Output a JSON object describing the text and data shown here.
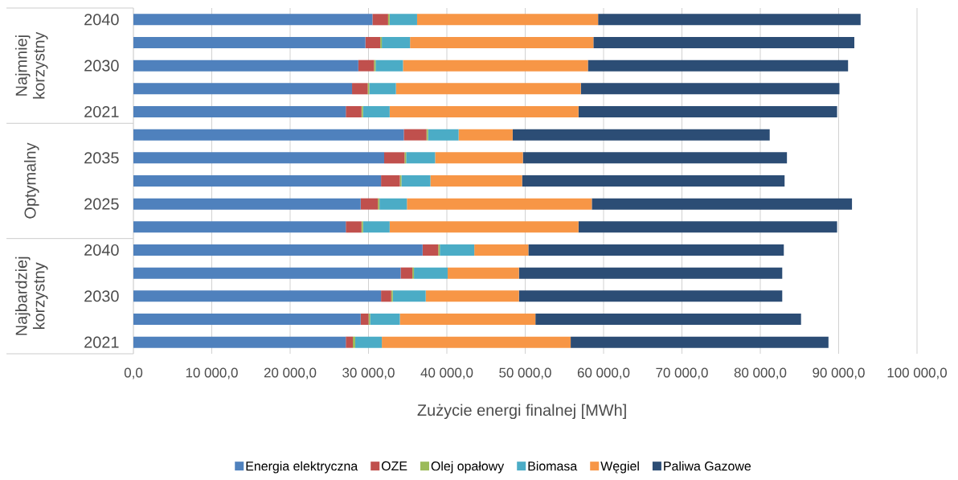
{
  "chart_data": {
    "type": "bar",
    "orientation": "horizontal",
    "stacked": true,
    "categories": [
      "2040",
      null,
      "2030",
      null,
      "2021",
      null,
      "2035",
      null,
      "2025",
      null,
      "2040",
      null,
      "2030",
      null,
      "2021"
    ],
    "series": [
      {
        "name": "Energia elektryczna",
        "color": "#4f81bd",
        "values": [
          30500,
          29600,
          28700,
          27900,
          27100,
          34500,
          32000,
          31600,
          29000,
          27100,
          36900,
          34100,
          31600,
          29000,
          27100
        ]
      },
      {
        "name": "OZE",
        "color": "#c0504d",
        "values": [
          2000,
          1900,
          2000,
          2000,
          2000,
          2900,
          2600,
          2400,
          2200,
          2000,
          2000,
          1500,
          1300,
          1000,
          900
        ]
      },
      {
        "name": "Olej opałowy",
        "color": "#9bbb59",
        "values": [
          200,
          200,
          200,
          200,
          200,
          200,
          200,
          200,
          200,
          200,
          200,
          200,
          200,
          200,
          300
        ]
      },
      {
        "name": "Biomasa",
        "color": "#4bacc6",
        "values": [
          3500,
          3600,
          3500,
          3400,
          3400,
          3900,
          3700,
          3700,
          3500,
          3400,
          4400,
          4300,
          4200,
          3800,
          3400
        ]
      },
      {
        "name": "Węgiel",
        "color": "#f79646",
        "values": [
          23100,
          23400,
          23600,
          23600,
          24100,
          6900,
          11200,
          11700,
          23600,
          24100,
          6900,
          9100,
          11900,
          17300,
          24100
        ]
      },
      {
        "name": "Paliwa Gazowe",
        "color": "#2c4d75",
        "values": [
          33500,
          33300,
          33200,
          33000,
          33000,
          32800,
          33700,
          33500,
          33200,
          33000,
          32600,
          33600,
          33600,
          33900,
          32900
        ]
      }
    ],
    "xlim": [
      0,
      100000
    ],
    "xticks": [
      {
        "value": 0,
        "label": "0,0"
      },
      {
        "value": 10000,
        "label": "10 000,0"
      },
      {
        "value": 20000,
        "label": "20 000,0"
      },
      {
        "value": 30000,
        "label": "30 000,0"
      },
      {
        "value": 40000,
        "label": "40 000,0"
      },
      {
        "value": 50000,
        "label": "50 000,0"
      },
      {
        "value": 60000,
        "label": "60 000,0"
      },
      {
        "value": 70000,
        "label": "70 000,0"
      },
      {
        "value": 80000,
        "label": "80 000,0"
      },
      {
        "value": 90000,
        "label": "90 000,0"
      },
      {
        "value": 100000,
        "label": "100 000,0"
      }
    ],
    "xlabel": "Zużycie energi finalnej [MWh]",
    "grid": "x",
    "legend": "bottom",
    "annotations": [
      "Najmniej korzystny",
      "Optymalny",
      "Najbardziej korzystny"
    ]
  }
}
